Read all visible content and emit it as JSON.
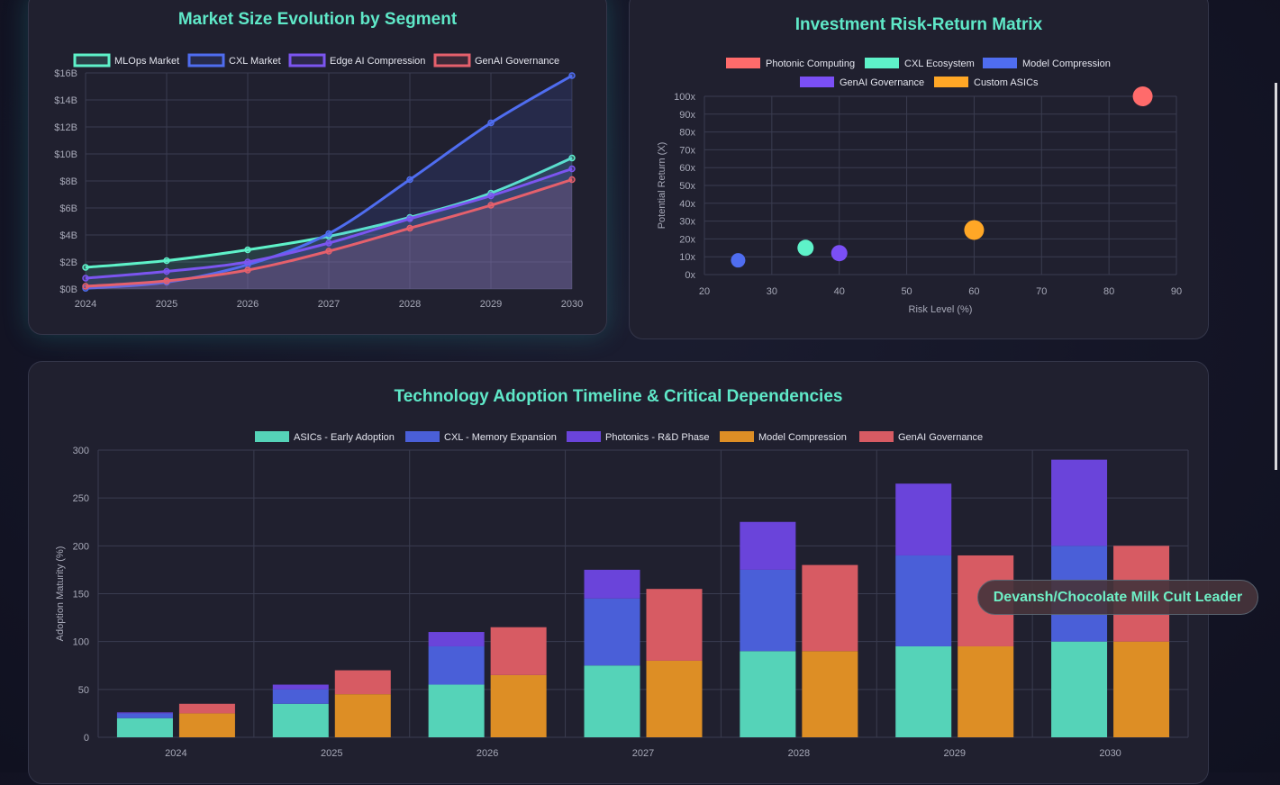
{
  "market_chart": {
    "title": "Market Size Evolution by Segment",
    "chart_data": {
      "type": "line",
      "x": [
        "2024",
        "2025",
        "2026",
        "2027",
        "2028",
        "2029",
        "2030"
      ],
      "ylim": [
        0,
        16
      ],
      "ytick_labels": [
        "$0B",
        "$2B",
        "$4B",
        "$6B",
        "$8B",
        "$10B",
        "$12B",
        "$14B",
        "$16B"
      ],
      "series": [
        {
          "name": "MLOps Market",
          "color": "#5ef2c9",
          "values": [
            1.6,
            2.1,
            2.9,
            3.9,
            5.3,
            7.1,
            9.7
          ]
        },
        {
          "name": "CXL Market",
          "color": "#4f6df0",
          "values": [
            0.05,
            0.5,
            1.8,
            4.1,
            8.1,
            12.3,
            15.8
          ]
        },
        {
          "name": "Edge AI Compression",
          "color": "#7b55f0",
          "values": [
            0.8,
            1.3,
            2.0,
            3.4,
            5.2,
            6.9,
            8.9
          ]
        },
        {
          "name": "GenAI Governance",
          "color": "#e5606c",
          "values": [
            0.2,
            0.6,
            1.4,
            2.8,
            4.5,
            6.2,
            8.1
          ]
        }
      ]
    }
  },
  "risk_chart": {
    "title": "Investment Risk-Return Matrix",
    "chart_data": {
      "type": "scatter",
      "xlabel": "Risk Level (%)",
      "ylabel": "Potential Return (X)",
      "xlim": [
        20,
        90
      ],
      "ylim": [
        0,
        100
      ],
      "xtick_labels": [
        "20",
        "30",
        "40",
        "50",
        "60",
        "70",
        "80",
        "90"
      ],
      "ytick_labels": [
        "0x",
        "10x",
        "20x",
        "30x",
        "40x",
        "50x",
        "60x",
        "70x",
        "80x",
        "90x",
        "100x"
      ],
      "series": [
        {
          "name": "Photonic Computing",
          "color": "#ff6b6b",
          "points": [
            {
              "x": 85,
              "y": 100,
              "r": 11
            }
          ]
        },
        {
          "name": "CXL Ecosystem",
          "color": "#5ef2c9",
          "points": [
            {
              "x": 35,
              "y": 15,
              "r": 9
            }
          ]
        },
        {
          "name": "Model Compression",
          "color": "#4f6df0",
          "points": [
            {
              "x": 25,
              "y": 8,
              "r": 8
            }
          ]
        },
        {
          "name": "GenAI Governance",
          "color": "#7b4ff6",
          "points": [
            {
              "x": 40,
              "y": 12,
              "r": 9
            }
          ]
        },
        {
          "name": "Custom ASICs",
          "color": "#ffa726",
          "points": [
            {
              "x": 60,
              "y": 25,
              "r": 11
            }
          ]
        }
      ]
    }
  },
  "adoption_chart": {
    "title": "Technology Adoption Timeline & Critical Dependencies",
    "chart_data": {
      "type": "bar",
      "stacked": true,
      "ylabel": "Adoption Maturity (%)",
      "ylim": [
        0,
        300
      ],
      "ytick_labels": [
        "0",
        "50",
        "100",
        "150",
        "200",
        "250",
        "300"
      ],
      "categories": [
        "2024",
        "2025",
        "2026",
        "2027",
        "2028",
        "2029",
        "2030"
      ],
      "series": [
        {
          "name": "ASICs - Early Adoption",
          "color": "#55d3b8",
          "stack": "a",
          "values": [
            20,
            35,
            55,
            75,
            90,
            95,
            100
          ]
        },
        {
          "name": "CXL - Memory Expansion",
          "color": "#4a5fd8",
          "stack": "a",
          "values": [
            5,
            15,
            40,
            70,
            85,
            95,
            100
          ]
        },
        {
          "name": "Photonics - R&D Phase",
          "color": "#6a44da",
          "stack": "a",
          "values": [
            1,
            5,
            15,
            30,
            50,
            75,
            90
          ]
        },
        {
          "name": "Model Compression",
          "color": "#dd8e25",
          "stack": "b",
          "values": [
            25,
            45,
            65,
            80,
            90,
            95,
            100
          ]
        },
        {
          "name": "GenAI Governance",
          "color": "#d75b63",
          "stack": "b",
          "values": [
            10,
            25,
            50,
            75,
            90,
            95,
            100
          ]
        }
      ]
    }
  },
  "tooltip": {
    "text": "Devansh/Chocolate Milk Cult Leader"
  }
}
